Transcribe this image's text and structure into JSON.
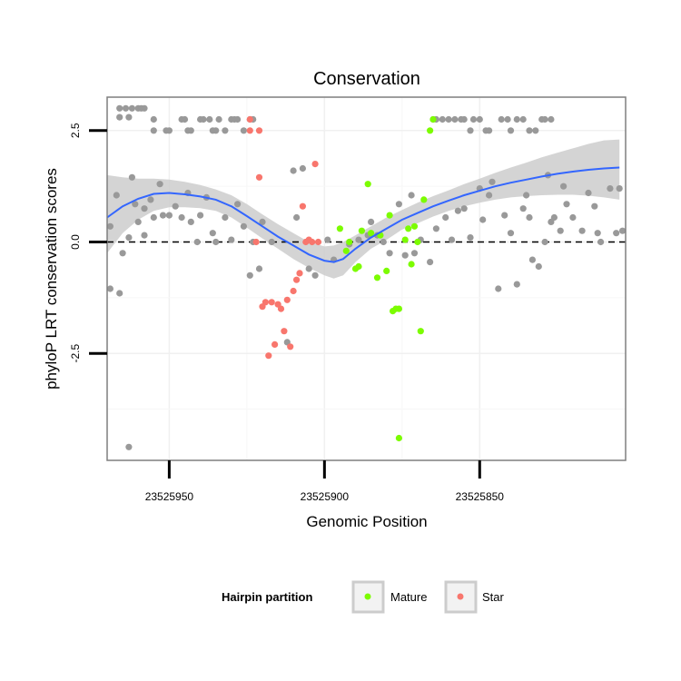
{
  "chart_data": {
    "type": "scatter",
    "title": "Conservation",
    "xlabel": "Genomic Position",
    "ylabel": "phyloP LRT conservation scores",
    "x_reversed": true,
    "xlim": [
      23525970,
      23525803
    ],
    "ylim": [
      -4.9,
      3.25
    ],
    "x_ticks": [
      {
        "value": 23525950,
        "label": "23525950"
      },
      {
        "value": 23525900,
        "label": "23525900"
      },
      {
        "value": 23525850,
        "label": "23525850"
      }
    ],
    "y_ticks": [
      {
        "value": 2.5,
        "label": "2.5"
      },
      {
        "value": 0.0,
        "label": "0.0"
      },
      {
        "value": -2.5,
        "label": "-2.5"
      }
    ],
    "reference_line": {
      "y": 0,
      "style": "dashed"
    },
    "grid": true,
    "legend": {
      "title": "Hairpin partition",
      "position": "bottom",
      "entries": [
        {
          "label": "Mature",
          "color": "#7CFC00"
        },
        {
          "label": "Star",
          "color": "#F8766D"
        }
      ]
    },
    "colors": {
      "other": "#999999",
      "Mature": "#7CFC00",
      "Star": "#F8766D",
      "smooth": "#3366FF",
      "ribbon": "#CCCCCC"
    },
    "series": [
      {
        "name": "Other",
        "color": "#999999",
        "points": [
          [
            23525966,
            3.0
          ],
          [
            23525964,
            3.0
          ],
          [
            23525963,
            2.8
          ],
          [
            23525966,
            2.8
          ],
          [
            23525962,
            3.0
          ],
          [
            23525960,
            3.0
          ],
          [
            23525959,
            3.0
          ],
          [
            23525958,
            3.0
          ],
          [
            23525955,
            2.75
          ],
          [
            23525955,
            2.5
          ],
          [
            23525951,
            2.5
          ],
          [
            23525950,
            2.5
          ],
          [
            23525946,
            2.75
          ],
          [
            23525945,
            2.75
          ],
          [
            23525944,
            2.5
          ],
          [
            23525943,
            2.5
          ],
          [
            23525940,
            2.75
          ],
          [
            23525939,
            2.75
          ],
          [
            23525937,
            2.75
          ],
          [
            23525936,
            2.5
          ],
          [
            23525935,
            2.5
          ],
          [
            23525934,
            2.75
          ],
          [
            23525932,
            2.5
          ],
          [
            23525930,
            2.75
          ],
          [
            23525929,
            2.75
          ],
          [
            23525928,
            2.75
          ],
          [
            23525926,
            2.5
          ],
          [
            23525924,
            2.75
          ],
          [
            23525923,
            2.75
          ],
          [
            23525865,
            2.75
          ],
          [
            23525864,
            2.75
          ],
          [
            23525862,
            2.75
          ],
          [
            23525860,
            2.75
          ],
          [
            23525858,
            2.75
          ],
          [
            23525856,
            2.75
          ],
          [
            23525855,
            2.75
          ],
          [
            23525853,
            2.5
          ],
          [
            23525852,
            2.75
          ],
          [
            23525850,
            2.75
          ],
          [
            23525848,
            2.5
          ],
          [
            23525847,
            2.5
          ],
          [
            23525843,
            2.75
          ],
          [
            23525841,
            2.75
          ],
          [
            23525840,
            2.5
          ],
          [
            23525838,
            2.75
          ],
          [
            23525836,
            2.75
          ],
          [
            23525834,
            2.5
          ],
          [
            23525832,
            2.5
          ],
          [
            23525830,
            2.75
          ],
          [
            23525829,
            2.75
          ],
          [
            23525827,
            2.75
          ],
          [
            23525962,
            1.45
          ],
          [
            23525967,
            1.05
          ],
          [
            23525969,
            0.35
          ],
          [
            23525961,
            0.85
          ],
          [
            23525960,
            0.45
          ],
          [
            23525958,
            0.15
          ],
          [
            23525963,
            0.1
          ],
          [
            23525965,
            -0.25
          ],
          [
            23525969,
            -1.05
          ],
          [
            23525966,
            -1.15
          ],
          [
            23525963,
            -4.6
          ],
          [
            23525958,
            0.75
          ],
          [
            23525956,
            0.95
          ],
          [
            23525955,
            0.55
          ],
          [
            23525953,
            1.3
          ],
          [
            23525952,
            0.6
          ],
          [
            23525950,
            0.6
          ],
          [
            23525948,
            0.8
          ],
          [
            23525946,
            0.55
          ],
          [
            23525944,
            1.1
          ],
          [
            23525943,
            0.45
          ],
          [
            23525941,
            0.0
          ],
          [
            23525940,
            0.6
          ],
          [
            23525938,
            1.0
          ],
          [
            23525936,
            0.2
          ],
          [
            23525935,
            0.0
          ],
          [
            23525932,
            0.55
          ],
          [
            23525930,
            0.05
          ],
          [
            23525928,
            0.85
          ],
          [
            23525926,
            0.35
          ],
          [
            23525924,
            -0.75
          ],
          [
            23525923,
            0.0
          ],
          [
            23525921,
            -0.6
          ],
          [
            23525920,
            0.45
          ],
          [
            23525917,
            0.0
          ],
          [
            23525912,
            -2.25
          ],
          [
            23525910,
            1.6
          ],
          [
            23525909,
            0.55
          ],
          [
            23525907,
            1.65
          ],
          [
            23525905,
            -0.6
          ],
          [
            23525903,
            -0.75
          ],
          [
            23525899,
            0.05
          ],
          [
            23525897,
            -0.4
          ],
          [
            23525892,
            -0.05
          ],
          [
            23525889,
            0.05
          ],
          [
            23525886,
            0.15
          ],
          [
            23525885,
            0.45
          ],
          [
            23525883,
            0.15
          ],
          [
            23525881,
            0.0
          ],
          [
            23525879,
            -0.25
          ],
          [
            23525876,
            0.85
          ],
          [
            23525874,
            -0.3
          ],
          [
            23525872,
            1.05
          ],
          [
            23525871,
            -0.25
          ],
          [
            23525869,
            0.05
          ],
          [
            23525866,
            -0.45
          ],
          [
            23525864,
            0.3
          ],
          [
            23525861,
            0.55
          ],
          [
            23525859,
            0.05
          ],
          [
            23525857,
            0.7
          ],
          [
            23525855,
            0.75
          ],
          [
            23525853,
            0.1
          ],
          [
            23525850,
            1.2
          ],
          [
            23525849,
            0.5
          ],
          [
            23525847,
            1.05
          ],
          [
            23525846,
            1.35
          ],
          [
            23525844,
            -1.05
          ],
          [
            23525842,
            0.6
          ],
          [
            23525840,
            0.2
          ],
          [
            23525838,
            -0.95
          ],
          [
            23525836,
            0.75
          ],
          [
            23525835,
            1.05
          ],
          [
            23525834,
            0.55
          ],
          [
            23525833,
            -0.4
          ],
          [
            23525831,
            -0.55
          ],
          [
            23525829,
            0.0
          ],
          [
            23525828,
            1.5
          ],
          [
            23525827,
            0.45
          ],
          [
            23525826,
            0.55
          ],
          [
            23525824,
            0.25
          ],
          [
            23525823,
            1.25
          ],
          [
            23525822,
            0.85
          ],
          [
            23525820,
            0.55
          ],
          [
            23525817,
            0.25
          ],
          [
            23525815,
            1.1
          ],
          [
            23525813,
            0.8
          ],
          [
            23525812,
            0.2
          ],
          [
            23525811,
            0.0
          ],
          [
            23525808,
            1.2
          ],
          [
            23525806,
            0.2
          ],
          [
            23525805,
            1.2
          ],
          [
            23525804,
            0.25
          ]
        ]
      },
      {
        "name": "Mature",
        "color": "#7CFC00",
        "points": [
          [
            23525895,
            0.3
          ],
          [
            23525893,
            -0.2
          ],
          [
            23525892,
            0.0
          ],
          [
            23525890,
            -0.6
          ],
          [
            23525889,
            -0.55
          ],
          [
            23525888,
            0.25
          ],
          [
            23525886,
            1.3
          ],
          [
            23525885,
            0.2
          ],
          [
            23525883,
            -0.8
          ],
          [
            23525882,
            0.15
          ],
          [
            23525880,
            -0.65
          ],
          [
            23525879,
            0.6
          ],
          [
            23525878,
            -1.55
          ],
          [
            23525877,
            -1.5
          ],
          [
            23525876,
            -1.5
          ],
          [
            23525876,
            -4.4
          ],
          [
            23525874,
            0.05
          ],
          [
            23525873,
            0.3
          ],
          [
            23525872,
            -0.5
          ],
          [
            23525871,
            0.35
          ],
          [
            23525870,
            0.0
          ],
          [
            23525869,
            -2.0
          ],
          [
            23525868,
            0.95
          ],
          [
            23525866,
            2.5
          ],
          [
            23525865,
            2.75
          ]
        ]
      },
      {
        "name": "Star",
        "color": "#F8766D",
        "points": [
          [
            23525924,
            2.75
          ],
          [
            23525924,
            2.5
          ],
          [
            23525921,
            2.5
          ],
          [
            23525922,
            0.0
          ],
          [
            23525921,
            1.45
          ],
          [
            23525920,
            -1.45
          ],
          [
            23525919,
            -1.35
          ],
          [
            23525918,
            -2.55
          ],
          [
            23525917,
            -1.35
          ],
          [
            23525916,
            -2.3
          ],
          [
            23525915,
            -1.4
          ],
          [
            23525914,
            -1.5
          ],
          [
            23525913,
            -2.0
          ],
          [
            23525912,
            -1.3
          ],
          [
            23525911,
            -2.35
          ],
          [
            23525910,
            -1.1
          ],
          [
            23525909,
            -0.85
          ],
          [
            23525908,
            -0.7
          ],
          [
            23525907,
            0.8
          ],
          [
            23525906,
            0.0
          ],
          [
            23525905,
            0.05
          ],
          [
            23525904,
            0.0
          ],
          [
            23525903,
            1.75
          ],
          [
            23525902,
            0.0
          ]
        ]
      }
    ],
    "smooth": {
      "method": "loess",
      "color": "#3366FF",
      "line": [
        [
          23525970,
          0.55
        ],
        [
          23525965,
          0.8
        ],
        [
          23525960,
          0.97
        ],
        [
          23525955,
          1.08
        ],
        [
          23525950,
          1.1
        ],
        [
          23525945,
          1.07
        ],
        [
          23525940,
          1.02
        ],
        [
          23525935,
          0.95
        ],
        [
          23525930,
          0.8
        ],
        [
          23525925,
          0.58
        ],
        [
          23525920,
          0.35
        ],
        [
          23525915,
          0.12
        ],
        [
          23525910,
          -0.08
        ],
        [
          23525905,
          -0.28
        ],
        [
          23525900,
          -0.42
        ],
        [
          23525897,
          -0.45
        ],
        [
          23525894,
          -0.38
        ],
        [
          23525890,
          -0.15
        ],
        [
          23525885,
          0.1
        ],
        [
          23525880,
          0.3
        ],
        [
          23525875,
          0.5
        ],
        [
          23525870,
          0.65
        ],
        [
          23525865,
          0.8
        ],
        [
          23525860,
          0.93
        ],
        [
          23525855,
          1.05
        ],
        [
          23525850,
          1.15
        ],
        [
          23525845,
          1.25
        ],
        [
          23525840,
          1.33
        ],
        [
          23525835,
          1.4
        ],
        [
          23525830,
          1.47
        ],
        [
          23525825,
          1.53
        ],
        [
          23525820,
          1.58
        ],
        [
          23525815,
          1.62
        ],
        [
          23525810,
          1.65
        ],
        [
          23525805,
          1.67
        ]
      ],
      "upper": [
        [
          23525970,
          1.5
        ],
        [
          23525965,
          1.45
        ],
        [
          23525960,
          1.42
        ],
        [
          23525955,
          1.42
        ],
        [
          23525950,
          1.4
        ],
        [
          23525945,
          1.35
        ],
        [
          23525940,
          1.28
        ],
        [
          23525935,
          1.18
        ],
        [
          23525930,
          1.05
        ],
        [
          23525925,
          0.85
        ],
        [
          23525920,
          0.62
        ],
        [
          23525915,
          0.4
        ],
        [
          23525910,
          0.2
        ],
        [
          23525905,
          0.0
        ],
        [
          23525900,
          -0.1
        ],
        [
          23525897,
          -0.08
        ],
        [
          23525894,
          0.0
        ],
        [
          23525890,
          0.15
        ],
        [
          23525885,
          0.35
        ],
        [
          23525880,
          0.55
        ],
        [
          23525875,
          0.72
        ],
        [
          23525870,
          0.88
        ],
        [
          23525865,
          1.03
        ],
        [
          23525860,
          1.16
        ],
        [
          23525855,
          1.3
        ],
        [
          23525850,
          1.42
        ],
        [
          23525845,
          1.55
        ],
        [
          23525840,
          1.67
        ],
        [
          23525835,
          1.78
        ],
        [
          23525830,
          1.9
        ],
        [
          23525825,
          2.0
        ],
        [
          23525820,
          2.1
        ],
        [
          23525815,
          2.2
        ],
        [
          23525810,
          2.28
        ],
        [
          23525805,
          2.3
        ]
      ],
      "lower": [
        [
          23525970,
          -0.25
        ],
        [
          23525965,
          0.2
        ],
        [
          23525960,
          0.5
        ],
        [
          23525955,
          0.7
        ],
        [
          23525950,
          0.78
        ],
        [
          23525945,
          0.78
        ],
        [
          23525940,
          0.76
        ],
        [
          23525935,
          0.7
        ],
        [
          23525930,
          0.55
        ],
        [
          23525925,
          0.32
        ],
        [
          23525920,
          0.08
        ],
        [
          23525915,
          -0.15
        ],
        [
          23525910,
          -0.38
        ],
        [
          23525905,
          -0.58
        ],
        [
          23525900,
          -0.75
        ],
        [
          23525897,
          -0.82
        ],
        [
          23525894,
          -0.75
        ],
        [
          23525890,
          -0.45
        ],
        [
          23525885,
          -0.15
        ],
        [
          23525880,
          0.05
        ],
        [
          23525875,
          0.28
        ],
        [
          23525870,
          0.42
        ],
        [
          23525865,
          0.57
        ],
        [
          23525860,
          0.7
        ],
        [
          23525855,
          0.8
        ],
        [
          23525850,
          0.88
        ],
        [
          23525845,
          0.95
        ],
        [
          23525840,
          1.0
        ],
        [
          23525835,
          1.03
        ],
        [
          23525830,
          1.05
        ],
        [
          23525825,
          1.06
        ],
        [
          23525820,
          1.06
        ],
        [
          23525815,
          1.04
        ],
        [
          23525810,
          1.0
        ],
        [
          23525805,
          0.95
        ]
      ]
    }
  }
}
